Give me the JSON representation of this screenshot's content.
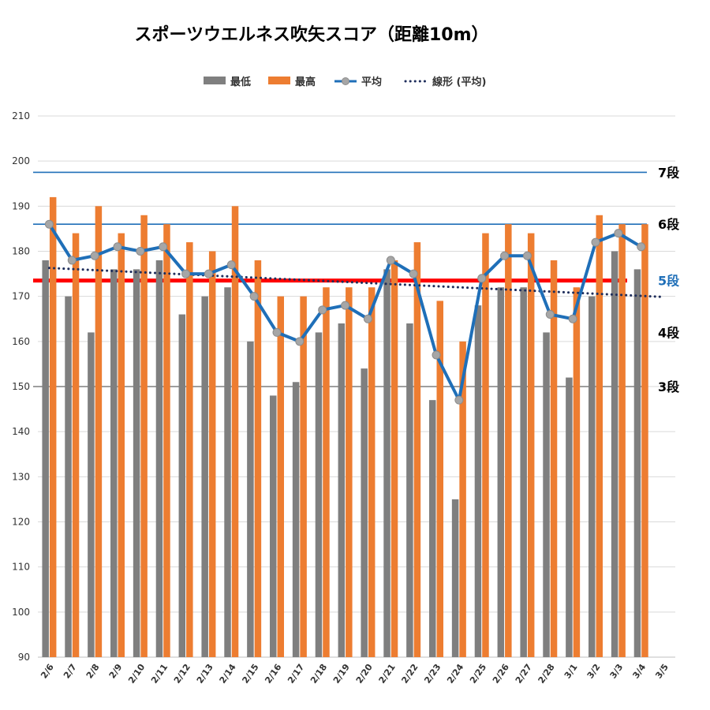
{
  "title": "スポーツウエルネス吹矢スコア（距離10m）",
  "legend": [
    {
      "key": "min",
      "label": "最低",
      "color": "#7f7f7f",
      "kind": "bar"
    },
    {
      "key": "max",
      "label": "最高",
      "color": "#ed7d31",
      "kind": "bar"
    },
    {
      "key": "avg",
      "label": "平均",
      "color": "#1f6fb8",
      "kind": "line"
    },
    {
      "key": "trend",
      "label": "線形 (平均)",
      "color": "#1f2e5c",
      "kind": "dotted"
    }
  ],
  "chart_data": {
    "type": "bar",
    "categories": [
      "2/6",
      "2/7",
      "2/8",
      "2/9",
      "2/10",
      "2/11",
      "2/12",
      "2/13",
      "2/14",
      "2/15",
      "2/16",
      "2/17",
      "2/18",
      "2/19",
      "2/20",
      "2/21",
      "2/22",
      "2/23",
      "2/24",
      "2/25",
      "2/26",
      "2/27",
      "2/28",
      "3/1",
      "3/2",
      "3/3",
      "3/4",
      "3/5"
    ],
    "ylim": [
      90,
      210
    ],
    "yticks": [
      90,
      100,
      110,
      120,
      130,
      140,
      150,
      160,
      170,
      180,
      190,
      200,
      210
    ],
    "series": [
      {
        "name": "最低",
        "type": "bar",
        "values": [
          178,
          170,
          162,
          176,
          176,
          178,
          166,
          170,
          172,
          160,
          148,
          151,
          162,
          164,
          154,
          176,
          164,
          147,
          125,
          168,
          172,
          172,
          162,
          152,
          170,
          180,
          176,
          null
        ]
      },
      {
        "name": "最高",
        "type": "bar",
        "values": [
          192,
          184,
          190,
          184,
          188,
          186,
          182,
          180,
          190,
          178,
          170,
          170,
          172,
          172,
          172,
          178,
          182,
          169,
          160,
          184,
          186,
          184,
          178,
          172,
          188,
          186,
          186,
          null
        ]
      },
      {
        "name": "平均",
        "type": "line",
        "values": [
          186,
          178,
          179,
          181,
          180,
          181,
          175,
          175,
          177,
          170,
          162,
          160,
          167,
          168,
          165,
          178,
          175,
          157,
          147,
          174,
          179,
          179,
          166,
          165,
          182,
          184,
          181,
          null
        ]
      },
      {
        "name": "線形 (平均)",
        "type": "trend",
        "from": 176.3,
        "to": 169.9
      }
    ],
    "reference_lines": [
      {
        "label": "7段",
        "value": 197.5,
        "color": "#1f6fb8",
        "label_color": "#000000"
      },
      {
        "label": "6段",
        "value": 186,
        "color": "#1f6fb8",
        "label_color": "#000000"
      },
      {
        "label": "5段",
        "value": 173.5,
        "color": "#ff0000",
        "label_color": "#1f6fb8",
        "thick": true
      },
      {
        "label": "4段",
        "value": 162,
        "color": null,
        "label_color": "#000000"
      },
      {
        "label": "3段",
        "value": 150,
        "color": "#7f7f7f",
        "label_color": "#000000"
      }
    ],
    "grid": true,
    "legend_position": "top"
  }
}
